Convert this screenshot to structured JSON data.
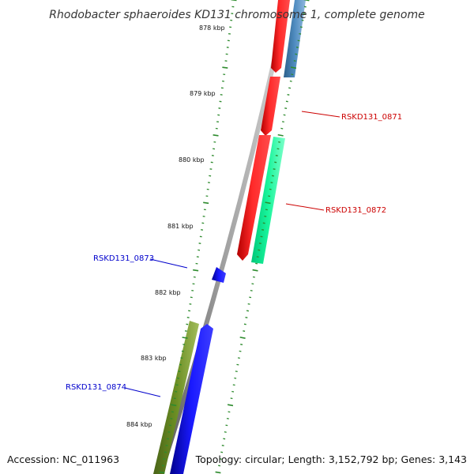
{
  "title": "Rhodobacter sphaeroides KD131 chromosome 1, complete genome",
  "footer": {
    "accession": "Accession: NC_011963",
    "summary": "Topology: circular; Length: 3,152,792 bp; Genes: 3,143"
  },
  "ruler_labels": [
    "878 kbp",
    "879 kbp",
    "880 kbp",
    "881 kbp",
    "882 kbp",
    "883 kbp",
    "884 kbp"
  ],
  "gene_labels": [
    {
      "text": "RSKD131_0871",
      "color": "#cc0000"
    },
    {
      "text": "RSKD131_0872",
      "color": "#cc0000"
    },
    {
      "text": "RSKD131_0873",
      "color": "#0000cc"
    },
    {
      "text": "RSKD131_0874",
      "color": "#0000cc"
    }
  ],
  "colors": {
    "backbone": "#8a8a8a",
    "tick": "#2e8b2e",
    "forward_gene": "#ff0000",
    "reverse_gene": "#0000ff",
    "forward_cog": "#4682b4",
    "cog_2": "#00fa9a",
    "reverse_cog": "#6b8e23"
  }
}
